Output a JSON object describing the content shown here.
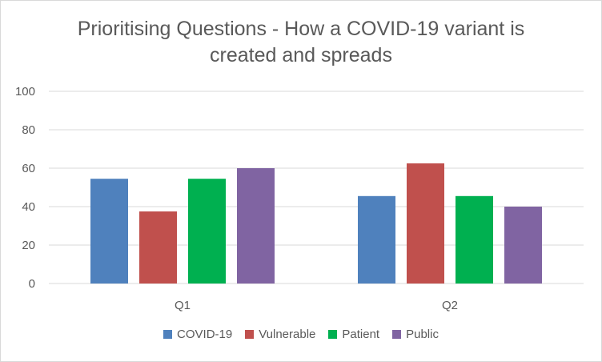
{
  "chart_data": {
    "type": "bar",
    "title_line1": "Prioritising Questions - How a COVID-19 variant is",
    "title_line2": "created and spreads",
    "categories": [
      "Q1",
      "Q2"
    ],
    "series": [
      {
        "name": "COVID-19",
        "values": [
          54.5,
          45.5
        ],
        "color": "#4f81bd"
      },
      {
        "name": "Vulnerable",
        "values": [
          37.5,
          62.5
        ],
        "color": "#c0504d"
      },
      {
        "name": "Patient",
        "values": [
          54.5,
          45.5
        ],
        "color": "#00b050"
      },
      {
        "name": "Public",
        "values": [
          60,
          40
        ],
        "color": "#8064a2"
      }
    ],
    "yticks": [
      "0",
      "20",
      "40",
      "60",
      "80",
      "100"
    ],
    "ylim": [
      0,
      100
    ],
    "grid": true,
    "legend": "bottom"
  }
}
